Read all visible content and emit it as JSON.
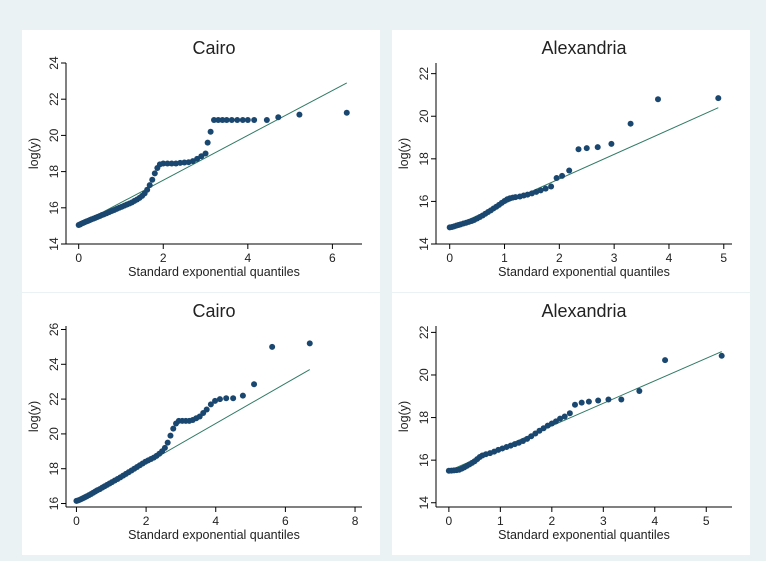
{
  "figure": {
    "background": "#eaf2f3",
    "plot_bg": "#ffffff",
    "marker_color": "#1a476f",
    "line_color": "#2f7a64"
  },
  "chart_data": [
    {
      "type": "scatter",
      "title": "Cairo",
      "xlabel": "Standard exponential quantiles",
      "ylabel": "log(y)",
      "xlim": [
        -0.3,
        6.7
      ],
      "ylim": [
        14,
        24
      ],
      "xticks": [
        0,
        2,
        4,
        6
      ],
      "yticks": [
        14,
        16,
        18,
        20,
        22,
        24
      ],
      "grid": false,
      "reference_line": [
        [
          0,
          15.05
        ],
        [
          6.34,
          22.9
        ]
      ],
      "points": [
        [
          0.0,
          15.05
        ],
        [
          0.03,
          15.08
        ],
        [
          0.06,
          15.12
        ],
        [
          0.1,
          15.16
        ],
        [
          0.14,
          15.2
        ],
        [
          0.18,
          15.24
        ],
        [
          0.22,
          15.28
        ],
        [
          0.26,
          15.32
        ],
        [
          0.3,
          15.36
        ],
        [
          0.35,
          15.4
        ],
        [
          0.4,
          15.45
        ],
        [
          0.45,
          15.5
        ],
        [
          0.5,
          15.55
        ],
        [
          0.55,
          15.6
        ],
        [
          0.6,
          15.64
        ],
        [
          0.66,
          15.7
        ],
        [
          0.72,
          15.76
        ],
        [
          0.78,
          15.82
        ],
        [
          0.84,
          15.88
        ],
        [
          0.9,
          15.94
        ],
        [
          0.96,
          16.0
        ],
        [
          1.02,
          16.06
        ],
        [
          1.08,
          16.12
        ],
        [
          1.14,
          16.18
        ],
        [
          1.2,
          16.24
        ],
        [
          1.26,
          16.3
        ],
        [
          1.32,
          16.38
        ],
        [
          1.38,
          16.46
        ],
        [
          1.44,
          16.55
        ],
        [
          1.5,
          16.66
        ],
        [
          1.56,
          16.8
        ],
        [
          1.62,
          17.0
        ],
        [
          1.68,
          17.25
        ],
        [
          1.74,
          17.55
        ],
        [
          1.8,
          17.9
        ],
        [
          1.86,
          18.2
        ],
        [
          1.92,
          18.4
        ],
        [
          2.0,
          18.45
        ],
        [
          2.1,
          18.45
        ],
        [
          2.2,
          18.45
        ],
        [
          2.3,
          18.45
        ],
        [
          2.4,
          18.48
        ],
        [
          2.5,
          18.5
        ],
        [
          2.6,
          18.52
        ],
        [
          2.7,
          18.58
        ],
        [
          2.8,
          18.7
        ],
        [
          2.9,
          18.85
        ],
        [
          3.0,
          19.0
        ],
        [
          3.05,
          19.6
        ],
        [
          3.12,
          20.2
        ],
        [
          3.2,
          20.85
        ],
        [
          3.3,
          20.85
        ],
        [
          3.4,
          20.85
        ],
        [
          3.5,
          20.85
        ],
        [
          3.62,
          20.85
        ],
        [
          3.75,
          20.85
        ],
        [
          3.88,
          20.85
        ],
        [
          4.0,
          20.85
        ],
        [
          4.15,
          20.85
        ],
        [
          4.45,
          20.85
        ],
        [
          4.72,
          21.0
        ],
        [
          5.22,
          21.15
        ],
        [
          6.34,
          21.25
        ]
      ]
    },
    {
      "type": "scatter",
      "title": "Alexandria",
      "xlabel": "Standard exponential quantiles",
      "ylabel": "log(y)",
      "xlim": [
        -0.25,
        5.15
      ],
      "ylim": [
        14,
        22.5
      ],
      "xticks": [
        0,
        1,
        2,
        3,
        4,
        5
      ],
      "yticks": [
        14,
        16,
        18,
        20,
        22
      ],
      "grid": false,
      "reference_line": [
        [
          0,
          14.75
        ],
        [
          4.9,
          20.4
        ]
      ],
      "points": [
        [
          0.0,
          14.78
        ],
        [
          0.04,
          14.8
        ],
        [
          0.08,
          14.83
        ],
        [
          0.12,
          14.86
        ],
        [
          0.16,
          14.89
        ],
        [
          0.2,
          14.92
        ],
        [
          0.25,
          14.96
        ],
        [
          0.3,
          15.0
        ],
        [
          0.35,
          15.04
        ],
        [
          0.4,
          15.08
        ],
        [
          0.45,
          15.13
        ],
        [
          0.5,
          15.2
        ],
        [
          0.55,
          15.27
        ],
        [
          0.6,
          15.34
        ],
        [
          0.65,
          15.42
        ],
        [
          0.7,
          15.5
        ],
        [
          0.75,
          15.58
        ],
        [
          0.8,
          15.67
        ],
        [
          0.85,
          15.75
        ],
        [
          0.9,
          15.84
        ],
        [
          0.95,
          15.93
        ],
        [
          1.0,
          16.02
        ],
        [
          1.05,
          16.1
        ],
        [
          1.1,
          16.15
        ],
        [
          1.15,
          16.18
        ],
        [
          1.2,
          16.2
        ],
        [
          1.28,
          16.23
        ],
        [
          1.35,
          16.28
        ],
        [
          1.42,
          16.32
        ],
        [
          1.5,
          16.38
        ],
        [
          1.58,
          16.45
        ],
        [
          1.66,
          16.52
        ],
        [
          1.75,
          16.6
        ],
        [
          1.85,
          16.7
        ],
        [
          1.95,
          17.1
        ],
        [
          2.05,
          17.2
        ],
        [
          2.18,
          17.45
        ],
        [
          2.35,
          18.45
        ],
        [
          2.5,
          18.5
        ],
        [
          2.7,
          18.55
        ],
        [
          2.95,
          18.7
        ],
        [
          3.3,
          19.65
        ],
        [
          3.8,
          20.8
        ],
        [
          4.9,
          20.85
        ]
      ]
    },
    {
      "type": "scatter",
      "title": "Cairo",
      "xlabel": "Standard exponential quantiles",
      "ylabel": "log(y)",
      "xlim": [
        -0.3,
        8.2
      ],
      "ylim": [
        15.8,
        26.2
      ],
      "xticks": [
        0,
        2,
        4,
        6,
        8
      ],
      "yticks": [
        16,
        18,
        20,
        22,
        24,
        26
      ],
      "grid": false,
      "reference_line": [
        [
          0,
          16.0
        ],
        [
          6.7,
          23.7
        ]
      ],
      "points": [
        [
          0.0,
          16.15
        ],
        [
          0.05,
          16.18
        ],
        [
          0.1,
          16.22
        ],
        [
          0.15,
          16.27
        ],
        [
          0.2,
          16.32
        ],
        [
          0.25,
          16.37
        ],
        [
          0.3,
          16.42
        ],
        [
          0.36,
          16.48
        ],
        [
          0.42,
          16.55
        ],
        [
          0.48,
          16.62
        ],
        [
          0.54,
          16.69
        ],
        [
          0.6,
          16.76
        ],
        [
          0.67,
          16.83
        ],
        [
          0.74,
          16.91
        ],
        [
          0.81,
          16.99
        ],
        [
          0.88,
          17.07
        ],
        [
          0.95,
          17.15
        ],
        [
          1.02,
          17.23
        ],
        [
          1.1,
          17.32
        ],
        [
          1.18,
          17.41
        ],
        [
          1.26,
          17.5
        ],
        [
          1.34,
          17.6
        ],
        [
          1.42,
          17.7
        ],
        [
          1.5,
          17.8
        ],
        [
          1.58,
          17.9
        ],
        [
          1.66,
          18.0
        ],
        [
          1.74,
          18.1
        ],
        [
          1.82,
          18.2
        ],
        [
          1.9,
          18.3
        ],
        [
          1.98,
          18.4
        ],
        [
          2.06,
          18.48
        ],
        [
          2.14,
          18.56
        ],
        [
          2.22,
          18.64
        ],
        [
          2.3,
          18.74
        ],
        [
          2.38,
          18.86
        ],
        [
          2.46,
          19.0
        ],
        [
          2.54,
          19.2
        ],
        [
          2.62,
          19.5
        ],
        [
          2.7,
          19.9
        ],
        [
          2.78,
          20.3
        ],
        [
          2.86,
          20.6
        ],
        [
          2.94,
          20.75
        ],
        [
          3.04,
          20.75
        ],
        [
          3.14,
          20.75
        ],
        [
          3.24,
          20.75
        ],
        [
          3.34,
          20.8
        ],
        [
          3.44,
          20.9
        ],
        [
          3.54,
          21.0
        ],
        [
          3.64,
          21.2
        ],
        [
          3.74,
          21.4
        ],
        [
          3.86,
          21.7
        ],
        [
          3.98,
          21.9
        ],
        [
          4.12,
          22.0
        ],
        [
          4.3,
          22.05
        ],
        [
          4.5,
          22.05
        ],
        [
          4.78,
          22.2
        ],
        [
          5.1,
          22.85
        ],
        [
          5.62,
          25.0
        ],
        [
          6.7,
          25.2
        ]
      ]
    },
    {
      "type": "scatter",
      "title": "Alexandria",
      "xlabel": "Standard exponential quantiles",
      "ylabel": "log(y)",
      "xlim": [
        -0.25,
        5.5
      ],
      "ylim": [
        13.8,
        22.3
      ],
      "xticks": [
        0,
        1,
        2,
        3,
        4,
        5
      ],
      "yticks": [
        14,
        16,
        18,
        20,
        22
      ],
      "grid": false,
      "reference_line": [
        [
          0,
          15.5
        ],
        [
          5.3,
          21.1
        ]
      ],
      "points": [
        [
          0.0,
          15.5
        ],
        [
          0.05,
          15.51
        ],
        [
          0.1,
          15.52
        ],
        [
          0.15,
          15.53
        ],
        [
          0.2,
          15.55
        ],
        [
          0.25,
          15.6
        ],
        [
          0.3,
          15.66
        ],
        [
          0.35,
          15.73
        ],
        [
          0.4,
          15.8
        ],
        [
          0.45,
          15.87
        ],
        [
          0.5,
          15.95
        ],
        [
          0.55,
          16.05
        ],
        [
          0.6,
          16.15
        ],
        [
          0.65,
          16.22
        ],
        [
          0.72,
          16.28
        ],
        [
          0.8,
          16.33
        ],
        [
          0.88,
          16.4
        ],
        [
          0.96,
          16.48
        ],
        [
          1.04,
          16.55
        ],
        [
          1.12,
          16.62
        ],
        [
          1.2,
          16.68
        ],
        [
          1.28,
          16.75
        ],
        [
          1.36,
          16.82
        ],
        [
          1.44,
          16.9
        ],
        [
          1.52,
          17.0
        ],
        [
          1.6,
          17.12
        ],
        [
          1.68,
          17.25
        ],
        [
          1.76,
          17.38
        ],
        [
          1.84,
          17.5
        ],
        [
          1.92,
          17.62
        ],
        [
          2.0,
          17.72
        ],
        [
          2.08,
          17.82
        ],
        [
          2.16,
          17.95
        ],
        [
          2.25,
          18.05
        ],
        [
          2.35,
          18.2
        ],
        [
          2.45,
          18.6
        ],
        [
          2.58,
          18.7
        ],
        [
          2.72,
          18.75
        ],
        [
          2.9,
          18.8
        ],
        [
          3.1,
          18.85
        ],
        [
          3.35,
          18.85
        ],
        [
          3.7,
          19.25
        ],
        [
          4.2,
          20.7
        ],
        [
          5.3,
          20.9
        ]
      ]
    }
  ]
}
